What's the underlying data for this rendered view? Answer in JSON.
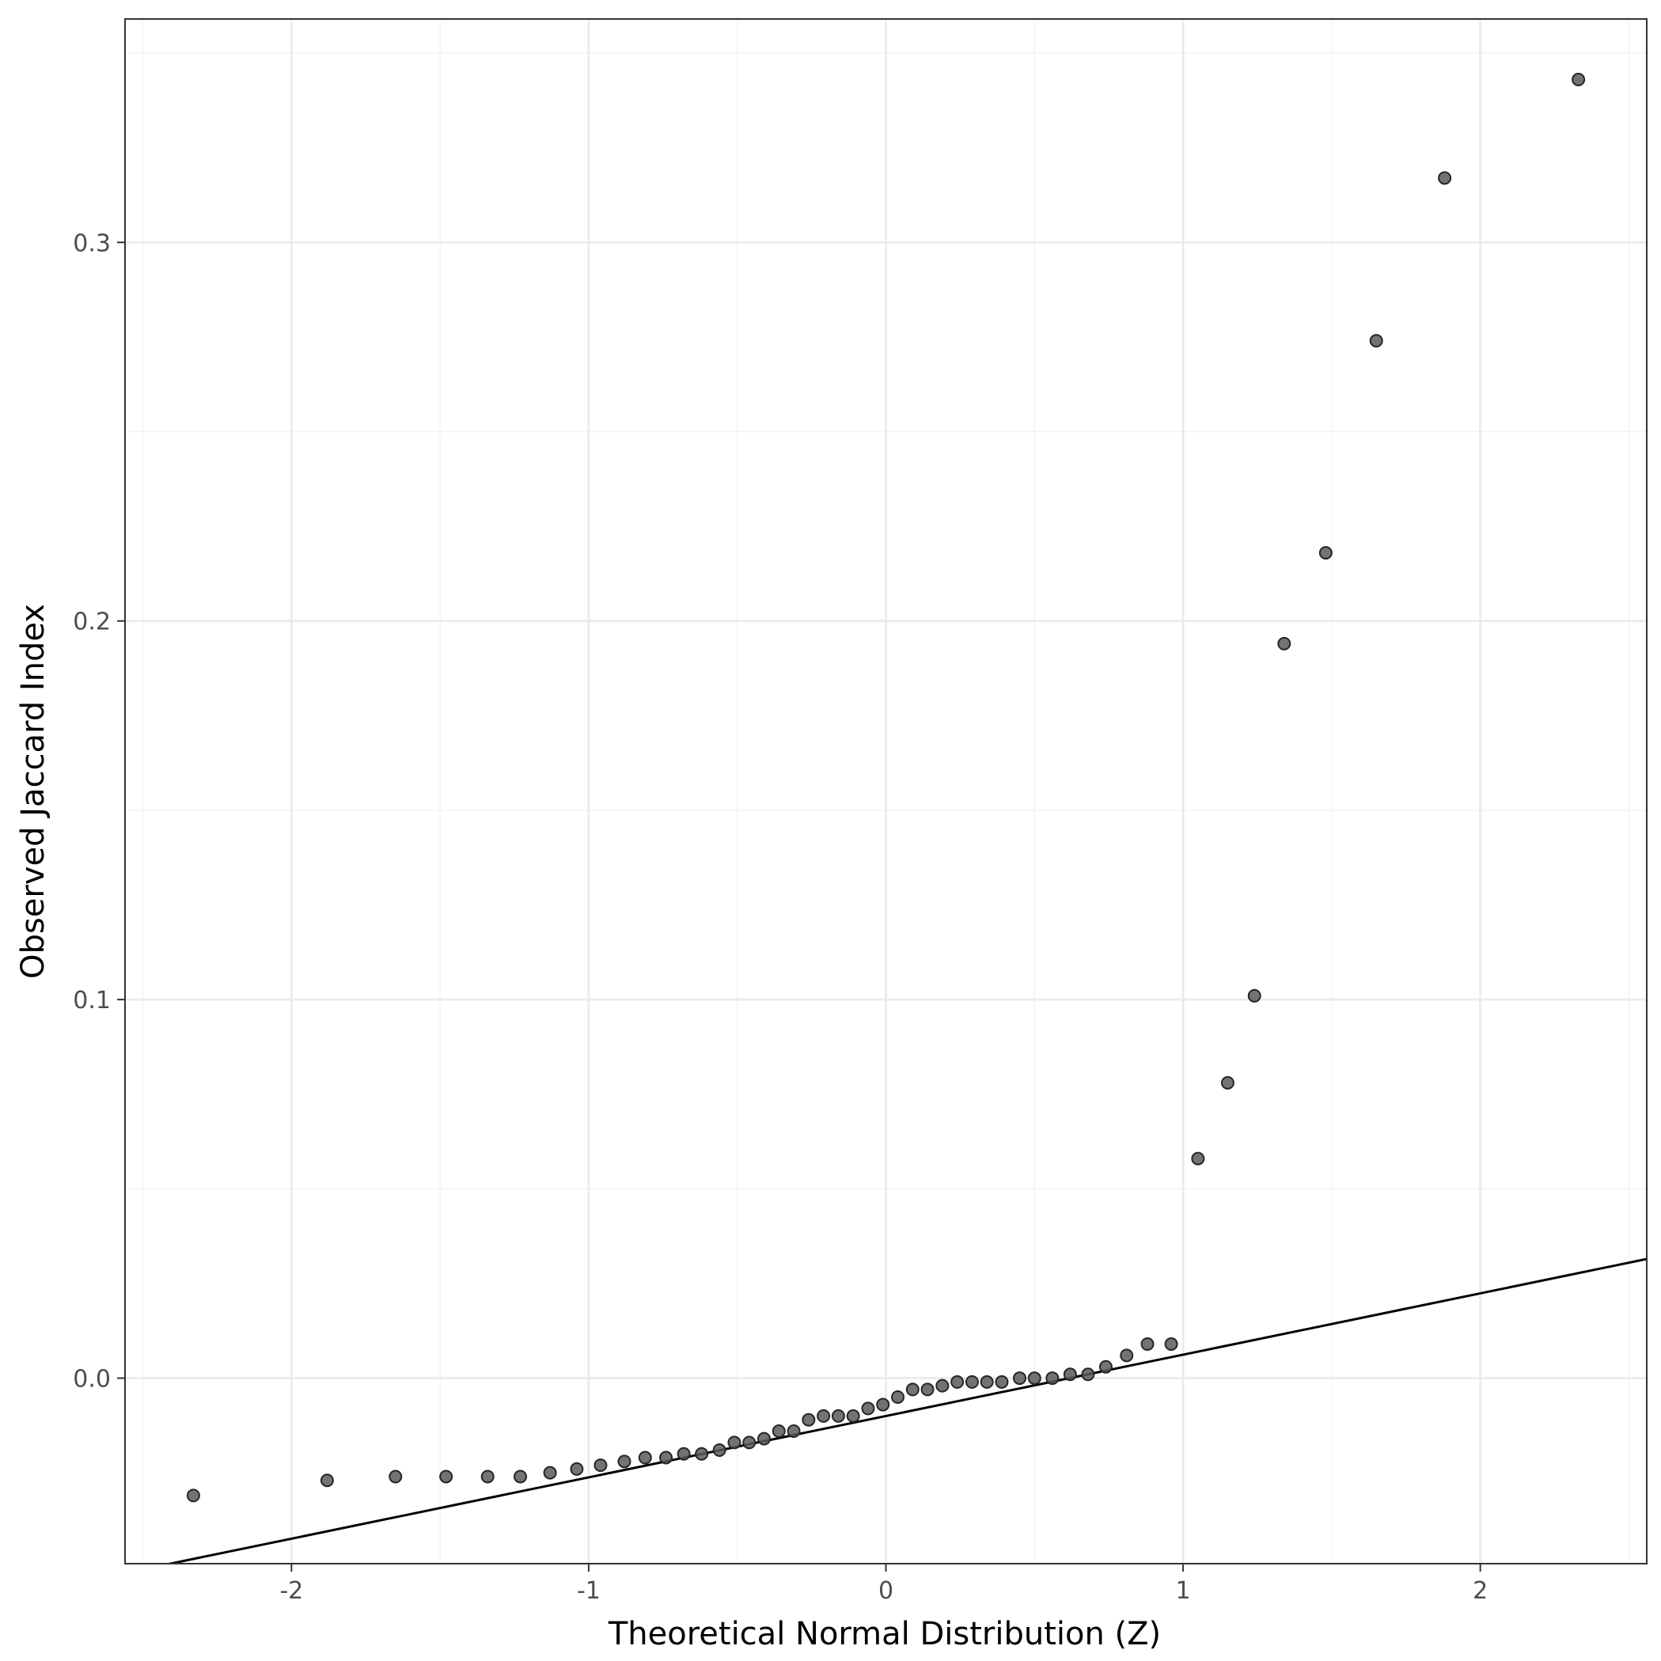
{
  "chart_data": {
    "type": "scatter",
    "title": "",
    "xlabel": "Theoretical Normal Distribution (Z)",
    "ylabel": "Observed Jaccard Index",
    "xlim": [
      -2.56,
      2.56
    ],
    "ylim": [
      -0.049,
      0.359
    ],
    "x_ticks": [
      -2,
      -1,
      0,
      1,
      2
    ],
    "x_tick_labels": [
      "-2",
      "-1",
      "0",
      "1",
      "2"
    ],
    "y_ticks": [
      0.0,
      0.1,
      0.2,
      0.3
    ],
    "y_tick_labels": [
      "0.0",
      "0.1",
      "0.2",
      "0.3"
    ],
    "grid": true,
    "points": [
      [
        -2.33,
        -0.031
      ],
      [
        -1.88,
        -0.027
      ],
      [
        -1.65,
        -0.026
      ],
      [
        -1.48,
        -0.026
      ],
      [
        -1.34,
        -0.026
      ],
      [
        -1.23,
        -0.026
      ],
      [
        -1.13,
        -0.025
      ],
      [
        -1.04,
        -0.024
      ],
      [
        -0.96,
        -0.023
      ],
      [
        -0.88,
        -0.022
      ],
      [
        -0.81,
        -0.021
      ],
      [
        -0.74,
        -0.021
      ],
      [
        -0.68,
        -0.02
      ],
      [
        -0.62,
        -0.02
      ],
      [
        -0.56,
        -0.019
      ],
      [
        -0.51,
        -0.017
      ],
      [
        -0.46,
        -0.017
      ],
      [
        -0.41,
        -0.016
      ],
      [
        -0.36,
        -0.014
      ],
      [
        -0.31,
        -0.014
      ],
      [
        -0.26,
        -0.011
      ],
      [
        -0.21,
        -0.01
      ],
      [
        -0.16,
        -0.01
      ],
      [
        -0.11,
        -0.01
      ],
      [
        -0.06,
        -0.008
      ],
      [
        -0.01,
        -0.007
      ],
      [
        0.04,
        -0.005
      ],
      [
        0.09,
        -0.003
      ],
      [
        0.14,
        -0.003
      ],
      [
        0.19,
        -0.002
      ],
      [
        0.24,
        -0.001
      ],
      [
        0.29,
        -0.001
      ],
      [
        0.34,
        -0.001
      ],
      [
        0.39,
        -0.001
      ],
      [
        0.45,
        0.0
      ],
      [
        0.5,
        0.0
      ],
      [
        0.56,
        0.0
      ],
      [
        0.62,
        0.001
      ],
      [
        0.68,
        0.001
      ],
      [
        0.74,
        0.003
      ],
      [
        0.81,
        0.006
      ],
      [
        0.88,
        0.009
      ],
      [
        0.96,
        0.009
      ],
      [
        1.05,
        0.058
      ],
      [
        1.15,
        0.078
      ],
      [
        1.24,
        0.101
      ],
      [
        1.34,
        0.194
      ],
      [
        1.48,
        0.218
      ],
      [
        1.65,
        0.274
      ],
      [
        1.88,
        0.317
      ],
      [
        2.33,
        0.343
      ]
    ],
    "reference_line": {
      "intercept": -0.01,
      "slope": 0.0162
    },
    "point_color": "#5a5a5a",
    "point_stroke": "#262626",
    "line_color": "#000000",
    "grid_major_color": "#ebebeb",
    "grid_minor_color": "#f3f3f3",
    "panel_border_color": "#333333"
  }
}
